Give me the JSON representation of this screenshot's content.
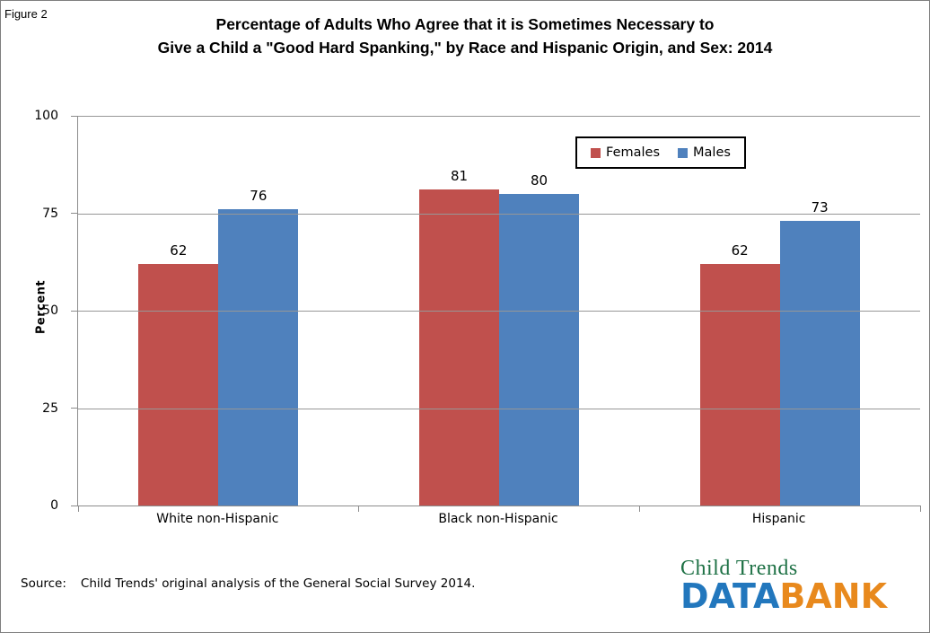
{
  "figure_label": "Figure 2",
  "header": {
    "title_line1": "Percentage of Adults Who Agree that it is Sometimes Necessary to",
    "title_line2": "Give a Child a \"Good Hard Spanking,\" by Race and Hispanic Origin, and Sex: 2014"
  },
  "chart_data": {
    "type": "bar",
    "title": "Percentage of Adults Who Agree that it is Sometimes Necessary to Give a Child a \"Good Hard Spanking,\" by Race and Hispanic Origin, and Sex: 2014",
    "categories": [
      "White non-Hispanic",
      "Black non-Hispanic",
      "Hispanic"
    ],
    "series": [
      {
        "name": "Females",
        "color": "#C0504D",
        "values": [
          62,
          81,
          62
        ]
      },
      {
        "name": "Males",
        "color": "#4F81BD",
        "values": [
          76,
          80,
          73
        ]
      }
    ],
    "xlabel": "",
    "ylabel": "Percent",
    "ylim": [
      0,
      100
    ],
    "yticks": [
      0,
      25,
      50,
      75,
      100
    ],
    "grid": true,
    "bar_value_labels": true,
    "legend_position": "top-right-inside",
    "gridline_color": "#979797",
    "axis_color": "#8c8c8c"
  },
  "footer": {
    "source_label": "Source:",
    "source_text": "Child Trends' original analysis of the General Social Survey 2014."
  },
  "logo": {
    "line1": "Child Trends",
    "word_data": "DATA",
    "word_bank": "BANK",
    "green": "#1E7145",
    "blue": "#2277BD",
    "orange": "#E8891D"
  }
}
